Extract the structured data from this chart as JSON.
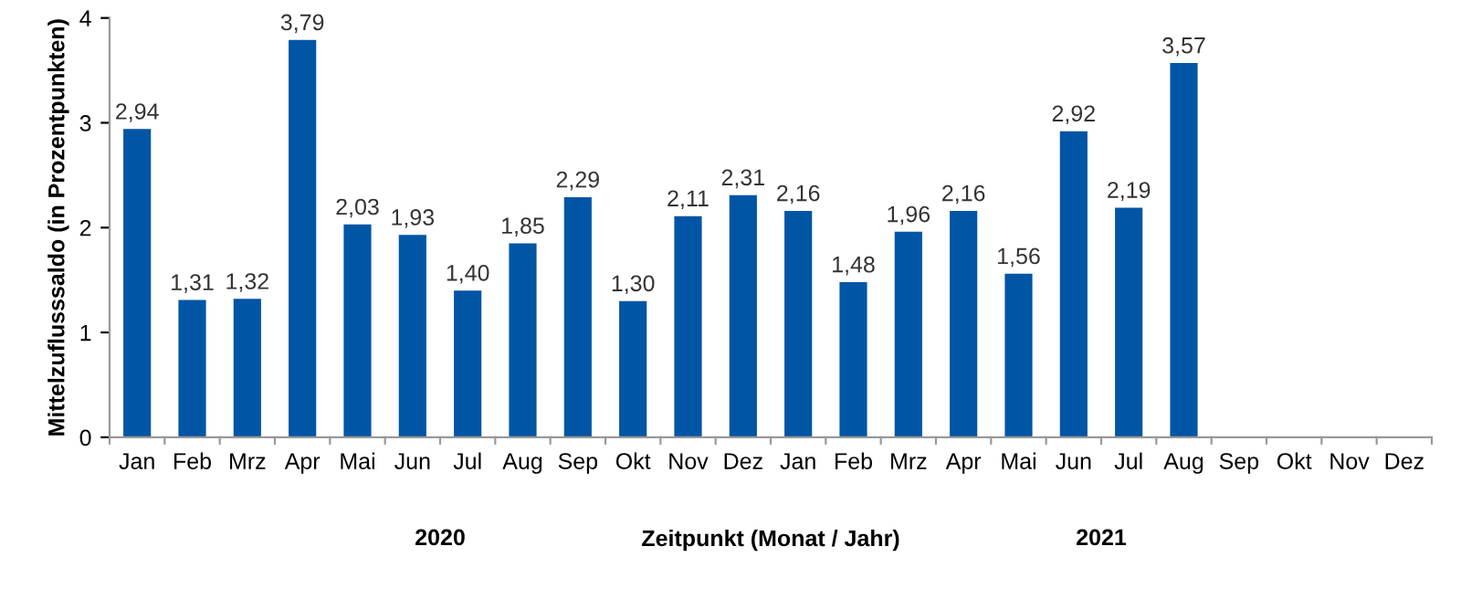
{
  "chart_data": {
    "type": "bar",
    "xlabel": "Zeitpunkt (Monat / Jahr)",
    "ylabel": "Mittelzuflusssaldo (in Prozentpunkten)",
    "categories": [
      "Jan",
      "Feb",
      "Mrz",
      "Apr",
      "Mai",
      "Jun",
      "Jul",
      "Aug",
      "Sep",
      "Okt",
      "Nov",
      "Dez",
      "Jan",
      "Feb",
      "Mrz",
      "Apr",
      "Mai",
      "Jun",
      "Jul",
      "Aug",
      "Sep",
      "Okt",
      "Nov",
      "Dez"
    ],
    "values": [
      2.94,
      1.31,
      1.32,
      3.79,
      2.03,
      1.93,
      1.4,
      1.85,
      2.29,
      1.3,
      2.11,
      2.31,
      2.16,
      1.48,
      1.96,
      2.16,
      1.56,
      2.92,
      2.19,
      3.57,
      null,
      null,
      null,
      null
    ],
    "value_labels": [
      "2,94",
      "1,31",
      "1,32",
      "3,79",
      "2,03",
      "1,93",
      "1,40",
      "1,85",
      "2,29",
      "1,30",
      "2,11",
      "2,31",
      "2,16",
      "1,48",
      "1,96",
      "2,16",
      "1,56",
      "2,92",
      "2,19",
      "3,57",
      null,
      null,
      null,
      null
    ],
    "color": "#0055a5",
    "ylim": [
      0,
      4
    ],
    "yticks": [
      0,
      1,
      2,
      3,
      4
    ],
    "grid": false,
    "legend": false,
    "annotations": [
      "2020",
      "2021"
    ]
  }
}
